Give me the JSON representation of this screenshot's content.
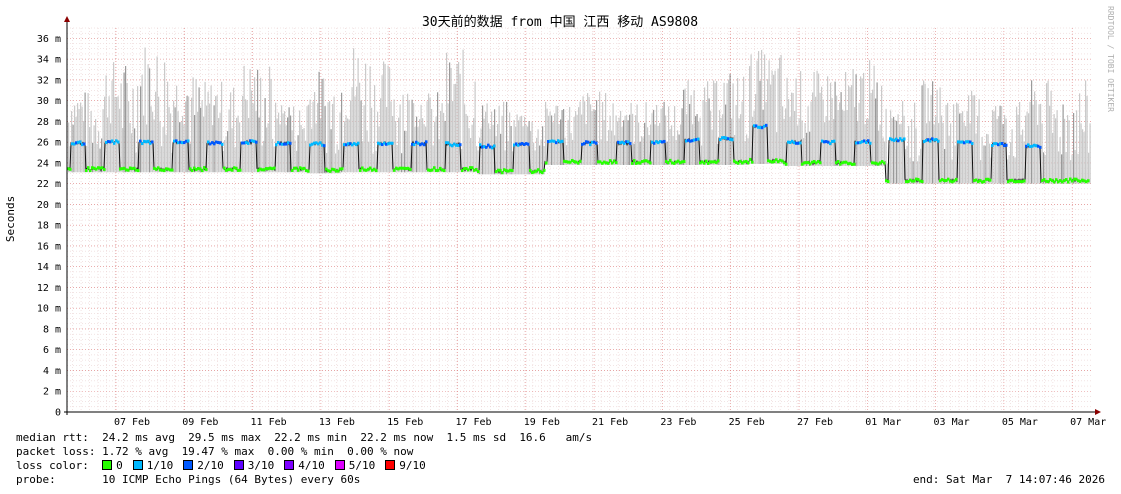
{
  "chart_data": {
    "type": "area",
    "title": "30天前的数据 from 中国 江西 移动 AS9808",
    "ylabel": "Seconds",
    "watermark": "RRDTOOL / TOBI OETIKER",
    "ylim": [
      0,
      37
    ],
    "y_ticks": [
      {
        "value": 0,
        "label": "0"
      },
      {
        "value": 2,
        "label": "2 m"
      },
      {
        "value": 4,
        "label": "4 m"
      },
      {
        "value": 6,
        "label": "6 m"
      },
      {
        "value": 8,
        "label": "8 m"
      },
      {
        "value": 10,
        "label": "10 m"
      },
      {
        "value": 12,
        "label": "12 m"
      },
      {
        "value": 14,
        "label": "14 m"
      },
      {
        "value": 16,
        "label": "16 m"
      },
      {
        "value": 18,
        "label": "18 m"
      },
      {
        "value": 20,
        "label": "20 m"
      },
      {
        "value": 22,
        "label": "22 m"
      },
      {
        "value": 24,
        "label": "24 m"
      },
      {
        "value": 26,
        "label": "26 m"
      },
      {
        "value": 28,
        "label": "28 m"
      },
      {
        "value": 30,
        "label": "30 m"
      },
      {
        "value": 32,
        "label": "32 m"
      },
      {
        "value": 34,
        "label": "34 m"
      },
      {
        "value": 36,
        "label": "36 m"
      }
    ],
    "x_ticks": [
      "07 Feb",
      "09 Feb",
      "11 Feb",
      "13 Feb",
      "15 Feb",
      "17 Feb",
      "19 Feb",
      "21 Feb",
      "23 Feb",
      "25 Feb",
      "27 Feb",
      "01 Mar",
      "03 Mar",
      "05 Mar",
      "07 Mar"
    ],
    "grid": true,
    "median_baseline_by_day": [
      {
        "day": "06 Feb",
        "low": 23.4,
        "high": 25.9
      },
      {
        "day": "07 Feb",
        "low": 23.4,
        "high": 26.0
      },
      {
        "day": "08 Feb",
        "low": 23.4,
        "high": 26.0
      },
      {
        "day": "09 Feb",
        "low": 23.4,
        "high": 26.0
      },
      {
        "day": "10 Feb",
        "low": 23.4,
        "high": 25.9
      },
      {
        "day": "11 Feb",
        "low": 23.4,
        "high": 26.0
      },
      {
        "day": "12 Feb",
        "low": 23.4,
        "high": 25.9
      },
      {
        "day": "13 Feb",
        "low": 23.3,
        "high": 25.8
      },
      {
        "day": "14 Feb",
        "low": 23.4,
        "high": 25.8
      },
      {
        "day": "15 Feb",
        "low": 23.4,
        "high": 25.9
      },
      {
        "day": "16 Feb",
        "low": 23.4,
        "high": 25.9
      },
      {
        "day": "17 Feb",
        "low": 23.4,
        "high": 25.8
      },
      {
        "day": "18 Feb",
        "low": 23.2,
        "high": 25.6
      },
      {
        "day": "19 Feb",
        "low": 23.2,
        "high": 25.8
      },
      {
        "day": "20 Feb",
        "low": 24.1,
        "high": 26.0
      },
      {
        "day": "21 Feb",
        "low": 24.1,
        "high": 25.9
      },
      {
        "day": "22 Feb",
        "low": 24.1,
        "high": 25.9
      },
      {
        "day": "23 Feb",
        "low": 24.1,
        "high": 26.0
      },
      {
        "day": "24 Feb",
        "low": 24.1,
        "high": 26.2
      },
      {
        "day": "25 Feb",
        "low": 24.1,
        "high": 26.3
      },
      {
        "day": "26 Feb",
        "low": 24.2,
        "high": 27.5
      },
      {
        "day": "27 Feb",
        "low": 24.0,
        "high": 26.0
      },
      {
        "day": "28 Feb",
        "low": 24.0,
        "high": 26.0
      },
      {
        "day": "01 Mar",
        "low": 24.0,
        "high": 26.0
      },
      {
        "day": "02 Mar",
        "low": 22.3,
        "high": 26.2
      },
      {
        "day": "03 Mar",
        "low": 22.3,
        "high": 26.2
      },
      {
        "day": "04 Mar",
        "low": 22.3,
        "high": 26.0
      },
      {
        "day": "05 Mar",
        "low": 22.3,
        "high": 25.8
      },
      {
        "day": "06 Mar",
        "low": 22.3,
        "high": 25.6
      }
    ],
    "spread_max_by_day": [
      31,
      34,
      36,
      33,
      32,
      34,
      30,
      33,
      36,
      34,
      31,
      35,
      30,
      29,
      30,
      31,
      30,
      30,
      32,
      33,
      35,
      33,
      33,
      34,
      30,
      32,
      31,
      30,
      32
    ]
  },
  "stats": {
    "median_rtt": "median rtt:  24.2 ms avg  29.5 ms max  22.2 ms min  22.2 ms now  1.5 ms sd  16.6   am/s",
    "packet_loss": "packet loss: 1.72 % avg  19.47 % max  0.00 % min  0.00 % now",
    "loss_color_label": "loss color:",
    "loss_colors": [
      {
        "label": "0",
        "color": "#26ff00"
      },
      {
        "label": "1/10",
        "color": "#00b8ff"
      },
      {
        "label": "2/10",
        "color": "#0059ff"
      },
      {
        "label": "3/10",
        "color": "#5e00ff"
      },
      {
        "label": "4/10",
        "color": "#7e00ff"
      },
      {
        "label": "5/10",
        "color": "#dd00ff"
      },
      {
        "label": "9/10",
        "color": "#ff0000"
      }
    ],
    "probe": "probe:       10 ICMP Echo Pings (64 Bytes) every 60s",
    "end": "end: Sat Mar  7 14:07:46 2026"
  }
}
